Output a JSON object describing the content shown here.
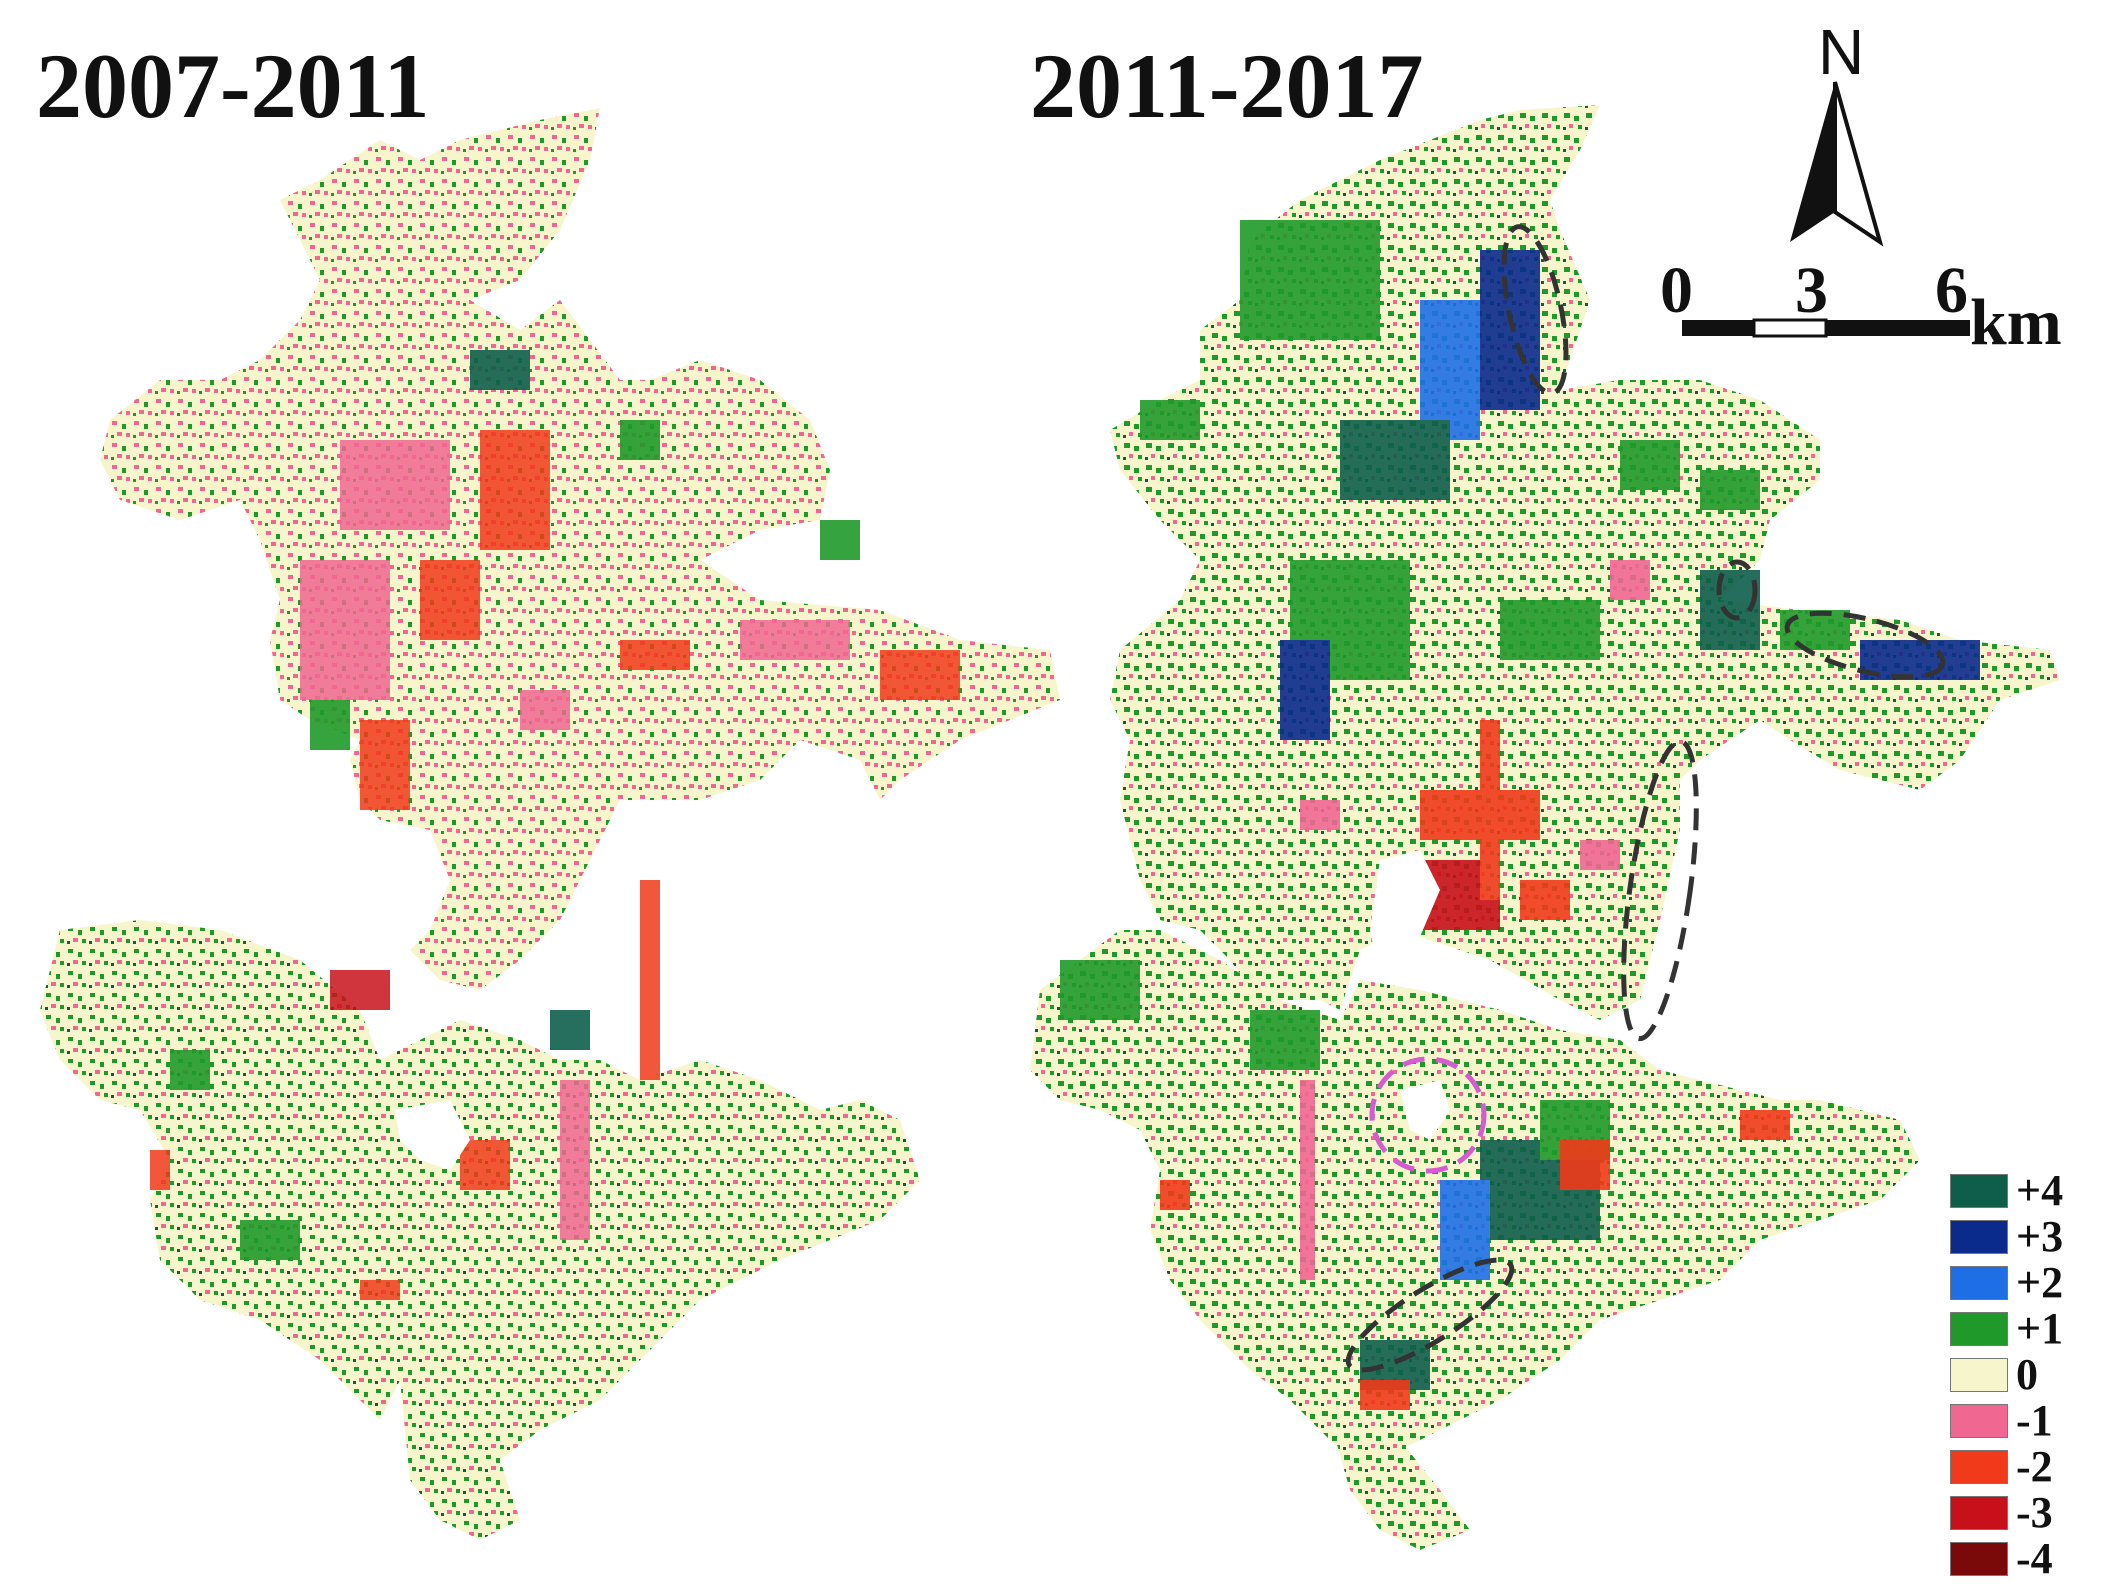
{
  "titles": {
    "left": "2007-2011",
    "right": "2011-2017"
  },
  "north_arrow": {
    "letter": "N",
    "icon": "north-arrow-icon"
  },
  "scale_bar": {
    "ticks": [
      "0",
      "3",
      "6"
    ],
    "unit": "km"
  },
  "legend": {
    "items": [
      {
        "label": "+4",
        "color": "#0e5e4b"
      },
      {
        "label": "+3",
        "color": "#0a2a8c"
      },
      {
        "label": "+2",
        "color": "#1e6fe6"
      },
      {
        "label": "+1",
        "color": "#1f9a2a"
      },
      {
        "label": "0",
        "color": "#f7f5cc"
      },
      {
        "label": "-1",
        "color": "#f06792"
      },
      {
        "label": "-2",
        "color": "#f03a1a"
      },
      {
        "label": "-3",
        "color": "#c8101a"
      },
      {
        "label": "-4",
        "color": "#7a0a0a"
      }
    ]
  },
  "colors": {
    "background": "#ffffff",
    "highlight_ellipse_dark": "#333333",
    "highlight_ellipse_magenta": "#d65ad0"
  }
}
